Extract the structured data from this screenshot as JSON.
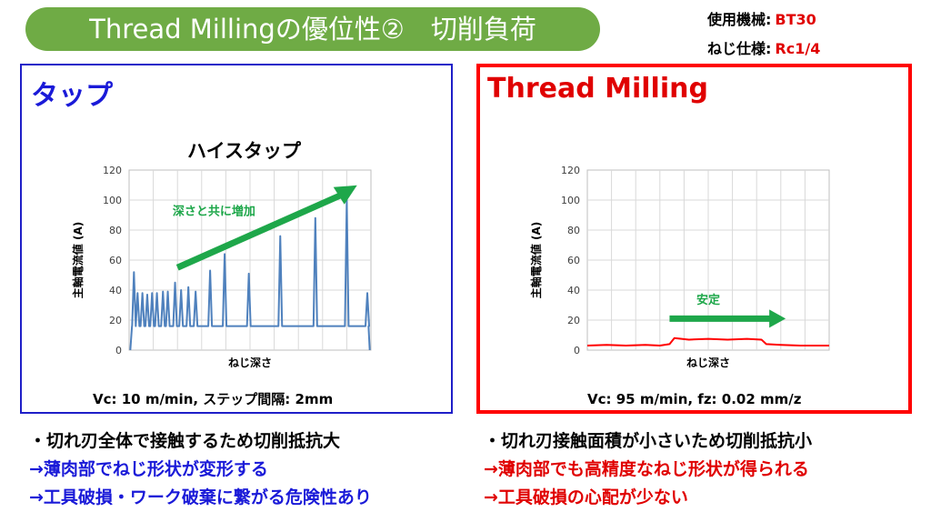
{
  "header": {
    "title": "Thread Millingの優位性②　切削負荷",
    "spec_machine_label": "使用機械:",
    "spec_machine_value": "BT30",
    "spec_thread_label": "ねじ仕様:",
    "spec_thread_value": "Rc1/4"
  },
  "left_panel": {
    "heading": "タップ",
    "chart_title": "ハイスタップ",
    "annotation": "深さと共に増加",
    "caption": "Vc: 10 m/min,  ステップ間隔: 2mm",
    "bullets": [
      "・切れ刃全体で接触するため切削抵抗大",
      "→薄肉部でねじ形状が変形する",
      "→工具破損・ワーク破棄に繋がる危険性あり"
    ]
  },
  "right_panel": {
    "heading": "Thread Milling",
    "annotation": "安定",
    "caption": "Vc: 95 m/min,  fz: 0.02 mm/z",
    "bullets": [
      "・切れ刃接触面積が小さいため切削抵抗小",
      "→薄肉部でも高精度なねじ形状が得られる",
      "→工具破損の心配が少ない"
    ]
  },
  "colors": {
    "title_pill": "#6fab45",
    "tap_border": "#1f1fc8",
    "milling_border": "#ff0000",
    "tap_series": "#4f81bd",
    "milling_series": "#ff0000",
    "arrow": "#1ea74a"
  },
  "chart_data": [
    {
      "type": "line",
      "title": "ハイスタップ",
      "xlabel": "ねじ深さ",
      "ylabel": "主軸電流値 (A)",
      "yticks": [
        "0",
        "20",
        "40",
        "60",
        "80",
        "100",
        "120"
      ],
      "ylim": [
        0,
        120
      ],
      "series": [
        {
          "baseline": 16,
          "spike_x": [
            0.02,
            0.035,
            0.055,
            0.075,
            0.095,
            0.115,
            0.14,
            0.16,
            0.19,
            0.215,
            0.245,
            0.275,
            0.335,
            0.395,
            0.495,
            0.625,
            0.77,
            0.9,
            0.985
          ],
          "spike_y": [
            52,
            38,
            38,
            37,
            38,
            38,
            39,
            39,
            45,
            40,
            42,
            39,
            53,
            64,
            51,
            76,
            88,
            100,
            38
          ]
        }
      ]
    },
    {
      "type": "line",
      "title": "",
      "xlabel": "ねじ深さ",
      "ylabel": "主軸電流値 (A)",
      "yticks": [
        "0",
        "20",
        "40",
        "60",
        "80",
        "100",
        "120"
      ],
      "ylim": [
        0,
        120
      ],
      "series": [
        {
          "x": [
            0,
            0.08,
            0.16,
            0.24,
            0.3,
            0.34,
            0.36,
            0.42,
            0.5,
            0.58,
            0.66,
            0.72,
            0.74,
            0.8,
            0.88,
            1.0
          ],
          "y": [
            3,
            3.5,
            3,
            3.5,
            3,
            4,
            8,
            7,
            7.5,
            7,
            7.5,
            7,
            4,
            3.5,
            3,
            3
          ]
        }
      ]
    }
  ]
}
